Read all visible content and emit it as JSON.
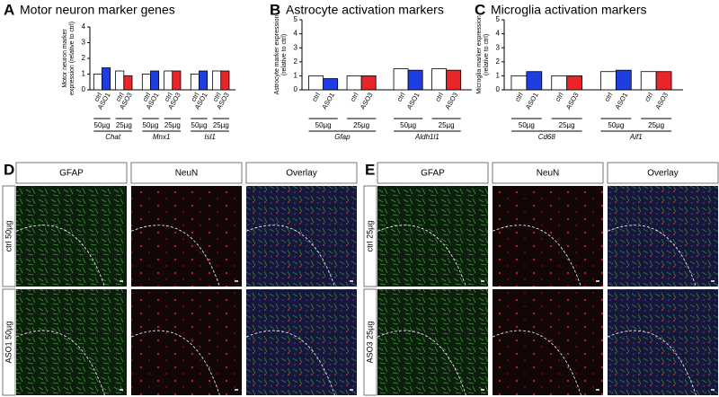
{
  "chart_data": [
    {
      "type": "bar",
      "panel": "A",
      "title": "Motor neuron marker genes",
      "ylabel": [
        "Motor neuron marker",
        "expression (relative to ctrl)"
      ],
      "categories": [
        "Chat",
        "Mnx1",
        "Isl1"
      ],
      "doses": [
        "50µg",
        "25µg"
      ],
      "series": [
        {
          "name": "ctrl",
          "color": "#ffffff",
          "values": [
            1.0,
            1.0,
            1.0
          ]
        },
        {
          "name": "ASO1",
          "color": "#1f3ee0",
          "values": [
            1.4,
            1.2,
            1.2
          ]
        },
        {
          "name": "ctrl",
          "color": "#ffffff",
          "values": [
            1.2,
            1.2,
            1.2
          ]
        },
        {
          "name": "ASO3",
          "color": "#e8262a",
          "values": [
            0.9,
            1.2,
            1.2
          ]
        }
      ],
      "ylim": [
        0,
        4
      ],
      "yticks": [
        0,
        1,
        2,
        3,
        4
      ]
    },
    {
      "type": "bar",
      "panel": "B",
      "title": "Astrocyte activation markers",
      "ylabel": [
        "Astrocyte marker expression",
        "(relative to ctrl)"
      ],
      "categories": [
        "Gfap",
        "Aldh1l1"
      ],
      "doses": [
        "50µg",
        "25µg"
      ],
      "series": [
        {
          "name": "ctrl",
          "color": "#ffffff",
          "values": [
            1.0,
            1.5
          ]
        },
        {
          "name": "ASO1",
          "color": "#1f3ee0",
          "values": [
            0.8,
            1.4
          ]
        },
        {
          "name": "ctrl",
          "color": "#ffffff",
          "values": [
            1.0,
            1.5
          ]
        },
        {
          "name": "ASO3",
          "color": "#e8262a",
          "values": [
            1.0,
            1.4
          ]
        }
      ],
      "ylim": [
        0,
        5
      ],
      "yticks": [
        0,
        1,
        2,
        3,
        4,
        5
      ]
    },
    {
      "type": "bar",
      "panel": "C",
      "title": "Microglia activation markers",
      "ylabel": [
        "Microglia marker expression",
        "(relative to ctrl)"
      ],
      "categories": [
        "Cd68",
        "Aif1"
      ],
      "doses": [
        "50µg",
        "25µg"
      ],
      "series": [
        {
          "name": "ctrl",
          "color": "#ffffff",
          "values": [
            1.0,
            1.3
          ]
        },
        {
          "name": "ASO1",
          "color": "#1f3ee0",
          "values": [
            1.3,
            1.4
          ]
        },
        {
          "name": "ctrl",
          "color": "#ffffff",
          "values": [
            1.0,
            1.3
          ]
        },
        {
          "name": "ASO3",
          "color": "#e8262a",
          "values": [
            1.0,
            1.3
          ]
        }
      ],
      "ylim": [
        0,
        5
      ],
      "yticks": [
        0,
        1,
        2,
        3,
        4,
        5
      ]
    }
  ],
  "panel_d": {
    "label": "D",
    "headers": [
      "GFAP",
      "NeuN",
      "Overlay"
    ],
    "rows": [
      "ctrl 50µg",
      "ASO1 50µg"
    ]
  },
  "panel_e": {
    "label": "E",
    "headers": [
      "GFAP",
      "NeuN",
      "Overlay"
    ],
    "rows": [
      "ctrl 25µg",
      "ASO3 25µg"
    ]
  }
}
